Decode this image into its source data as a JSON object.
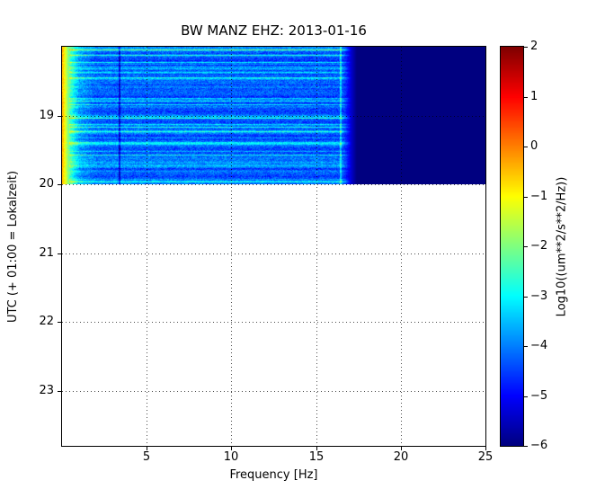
{
  "chart_data": {
    "type": "heatmap",
    "title": "BW MANZ EHZ: 2013-01-16",
    "xlabel": "Frequency [Hz]",
    "ylabel": "UTC (+ 01:00 = Lokalzeit)",
    "xlim": [
      0,
      25
    ],
    "xticks": [
      "5",
      "10",
      "15",
      "20",
      "25"
    ],
    "ylim_hours": [
      18.0,
      23.8
    ],
    "yticks": [
      "19",
      "20",
      "21",
      "22",
      "23"
    ],
    "grid": {
      "visible": true,
      "linestyle": "dotted"
    },
    "spectrogram_extent": {
      "freq_hz": [
        0,
        25
      ],
      "time_hours": [
        18.0,
        20.0
      ]
    },
    "colorbar": {
      "label": "Log10((um**2/s**2/Hz))",
      "vmin": -6,
      "vmax": 2,
      "ticks": [
        "2",
        "1",
        "0",
        "−1",
        "−2",
        "−3",
        "−4",
        "−5",
        "−6"
      ],
      "colormap": "jet"
    },
    "spectrogram": {
      "description": "Power spectral density: bright yellow-green band near 0 Hz, blue/cyan noise with horizontal streaks from ~0.5 to ~16.8 Hz, uniform dark navy floor (−6) above ~17 Hz; data only from 18:00 to 20:00, blank below.",
      "base_profile_hz_log10": [
        [
          0,
          -0.3
        ],
        [
          0.2,
          -1.2
        ],
        [
          0.5,
          -2.6
        ],
        [
          1.0,
          -3.8
        ],
        [
          2.0,
          -4.35
        ],
        [
          16.6,
          -4.45
        ],
        [
          17.4,
          -6.0
        ],
        [
          25,
          -6.0
        ]
      ],
      "noise_floor": -6,
      "cutoff_hz": 16.8,
      "row_streak_probability": 0.18,
      "dark_line_hz": 3.4,
      "bright_line_hz": 16.45,
      "seed": 123457
    }
  }
}
